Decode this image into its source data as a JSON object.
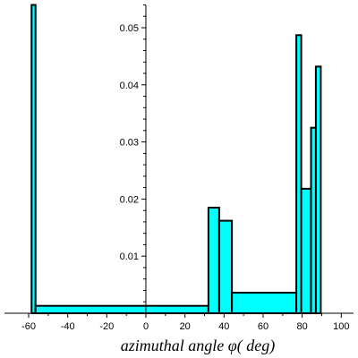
{
  "chart_data": {
    "type": "bar",
    "title": "",
    "xlabel": "azimuthal angle φ( deg)",
    "ylabel": "",
    "xlim": [
      -68,
      100
    ],
    "ylim": [
      0,
      0.055
    ],
    "grid": false,
    "legend": "none",
    "x_ticks": [
      "-60",
      "-40",
      "-20",
      "0",
      "20",
      "40",
      "60",
      "80",
      "100"
    ],
    "x_tick_values": [
      -60,
      -40,
      -20,
      0,
      20,
      40,
      60,
      80,
      100
    ],
    "y_ticks": [
      "0.01",
      "0.02",
      "0.03",
      "0.04",
      "0.05"
    ],
    "y_tick_values": [
      0.01,
      0.02,
      0.03,
      0.04,
      0.05
    ],
    "colors": {
      "bar_fill": "#00ffff",
      "bar_edge": "#000000",
      "axis": "#000000"
    },
    "bins": [
      {
        "x0": -58.5,
        "x1": -56.5,
        "value": 0.054
      },
      {
        "x0": -56.5,
        "x1": 32,
        "value": 0.0013
      },
      {
        "x0": 32,
        "x1": 37.5,
        "value": 0.0185
      },
      {
        "x0": 37.5,
        "x1": 44,
        "value": 0.0162
      },
      {
        "x0": 44,
        "x1": 77,
        "value": 0.0036
      },
      {
        "x0": 77,
        "x1": 79.5,
        "value": 0.0487
      },
      {
        "x0": 79.5,
        "x1": 84.5,
        "value": 0.0218
      },
      {
        "x0": 84.5,
        "x1": 87,
        "value": 0.0325
      },
      {
        "x0": 87,
        "x1": 89.5,
        "value": 0.0432
      }
    ]
  }
}
